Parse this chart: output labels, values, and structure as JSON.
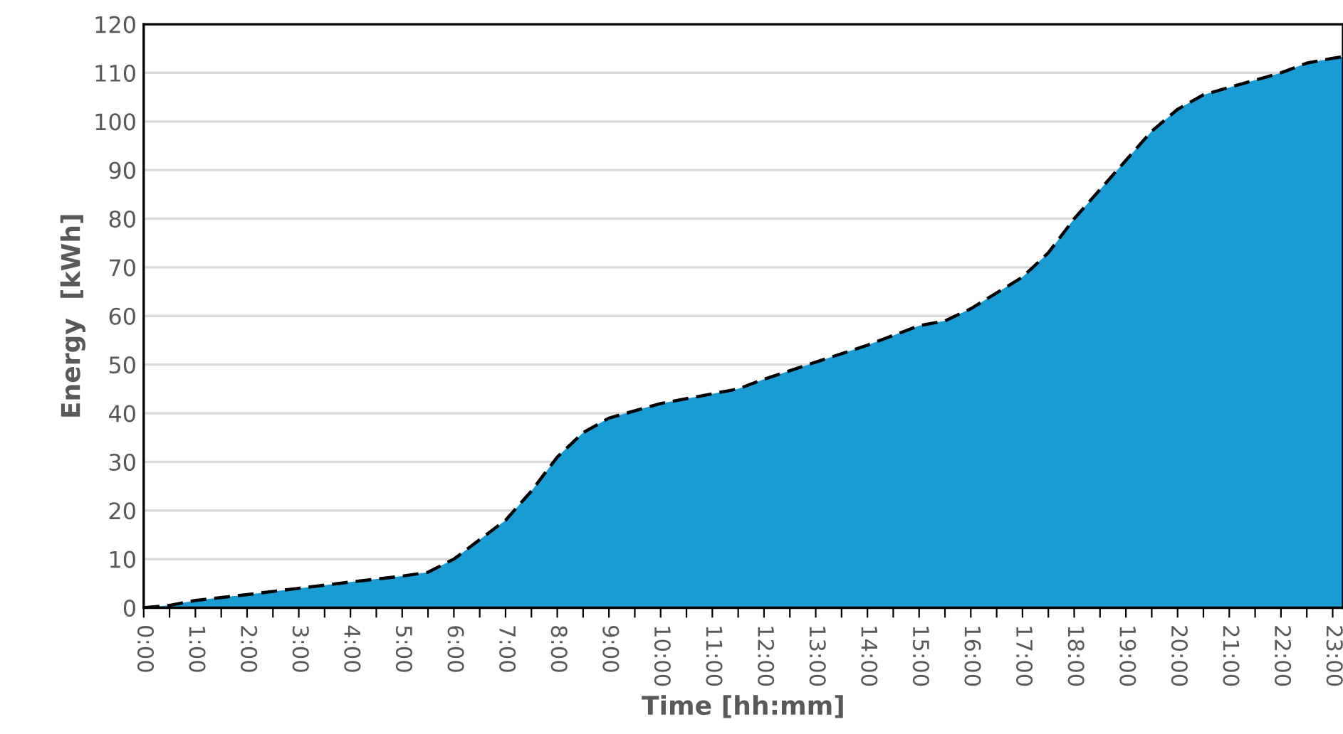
{
  "chart_data": {
    "type": "area",
    "xlabel": "Time [hh:mm]",
    "ylabel": "Energy  [kWh]",
    "x": [
      0,
      0.5,
      1,
      2,
      3,
      4,
      5,
      5.5,
      6,
      7,
      7.5,
      8,
      8.5,
      9,
      10,
      11,
      11.5,
      12,
      13,
      14,
      15,
      15.5,
      16,
      17,
      17.5,
      18,
      19,
      19.5,
      20,
      20.5,
      21,
      22,
      22.5,
      23,
      23.2
    ],
    "series": [
      {
        "color": "#199bd4",
        "values": [
          0,
          0.5,
          1.5,
          2.7,
          4,
          5.3,
          6.5,
          7.3,
          10,
          18,
          24,
          31,
          36,
          39,
          42,
          44,
          45,
          47,
          50.5,
          54,
          58,
          59,
          61.5,
          68,
          73,
          80,
          92,
          98,
          102.5,
          105.5,
          107,
          110,
          112,
          113,
          113.3
        ]
      }
    ],
    "line_style": "dashed",
    "grid": "y",
    "xlim": [
      0,
      23.2
    ],
    "ylim": [
      0,
      120
    ],
    "xticks": [
      {
        "value": 0,
        "label": "0:00"
      },
      {
        "value": 0.5,
        "label": null
      },
      {
        "value": 1,
        "label": "1:00"
      },
      {
        "value": 1.5,
        "label": null
      },
      {
        "value": 2,
        "label": "2:00"
      },
      {
        "value": 2.5,
        "label": null
      },
      {
        "value": 3,
        "label": "3:00"
      },
      {
        "value": 3.5,
        "label": null
      },
      {
        "value": 4,
        "label": "4:00"
      },
      {
        "value": 4.5,
        "label": null
      },
      {
        "value": 5,
        "label": "5:00"
      },
      {
        "value": 5.5,
        "label": null
      },
      {
        "value": 6,
        "label": "6:00"
      },
      {
        "value": 6.5,
        "label": null
      },
      {
        "value": 7,
        "label": "7:00"
      },
      {
        "value": 7.5,
        "label": null
      },
      {
        "value": 8,
        "label": "8:00"
      },
      {
        "value": 8.5,
        "label": null
      },
      {
        "value": 9,
        "label": "9:00"
      },
      {
        "value": 9.5,
        "label": null
      },
      {
        "value": 10,
        "label": "10:00"
      },
      {
        "value": 10.5,
        "label": null
      },
      {
        "value": 11,
        "label": "11:00"
      },
      {
        "value": 11.5,
        "label": null
      },
      {
        "value": 12,
        "label": "12:00"
      },
      {
        "value": 12.5,
        "label": null
      },
      {
        "value": 13,
        "label": "13:00"
      },
      {
        "value": 13.5,
        "label": null
      },
      {
        "value": 14,
        "label": "14:00"
      },
      {
        "value": 14.5,
        "label": null
      },
      {
        "value": 15,
        "label": "15:00"
      },
      {
        "value": 15.5,
        "label": null
      },
      {
        "value": 16,
        "label": "16:00"
      },
      {
        "value": 16.5,
        "label": null
      },
      {
        "value": 17,
        "label": "17:00"
      },
      {
        "value": 17.5,
        "label": null
      },
      {
        "value": 18,
        "label": "18:00"
      },
      {
        "value": 18.5,
        "label": null
      },
      {
        "value": 19,
        "label": "19:00"
      },
      {
        "value": 19.5,
        "label": null
      },
      {
        "value": 20,
        "label": "20:00"
      },
      {
        "value": 20.5,
        "label": null
      },
      {
        "value": 21,
        "label": "21:00"
      },
      {
        "value": 21.5,
        "label": null
      },
      {
        "value": 22,
        "label": "22:00"
      },
      {
        "value": 22.5,
        "label": null
      },
      {
        "value": 23,
        "label": "23:00"
      }
    ],
    "yticks": [
      0,
      10,
      20,
      30,
      40,
      50,
      60,
      70,
      80,
      90,
      100,
      110,
      120
    ]
  }
}
